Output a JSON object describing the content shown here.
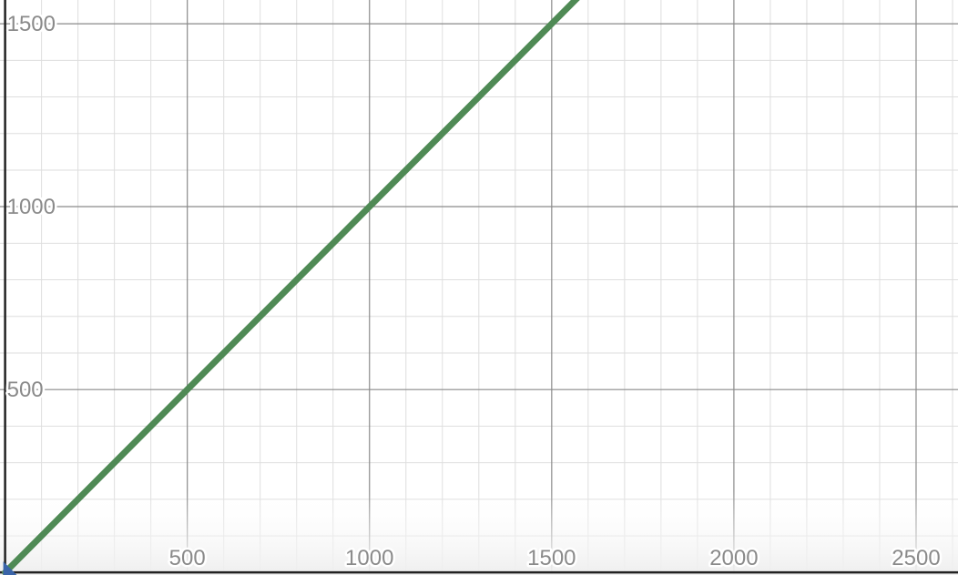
{
  "chart_data": {
    "type": "line",
    "title": "",
    "xlabel": "",
    "ylabel": "",
    "xlim": [
      -14,
      2615
    ],
    "ylim": [
      -7,
      1565
    ],
    "grid": true,
    "major_tick_step": 500,
    "minor_tick_step": 100,
    "x_ticks": [
      {
        "value": 500,
        "label": "500"
      },
      {
        "value": 1000,
        "label": "1000"
      },
      {
        "value": 1500,
        "label": "1500"
      },
      {
        "value": 2000,
        "label": "2000"
      },
      {
        "value": 2500,
        "label": "2500"
      }
    ],
    "y_ticks": [
      {
        "value": 500,
        "label": "500"
      },
      {
        "value": 1000,
        "label": "1000"
      },
      {
        "value": 1500,
        "label": "1500"
      }
    ],
    "series": [
      {
        "color": "#4f8a55",
        "x": [
          0,
          1590
        ],
        "y": [
          0,
          1590
        ]
      }
    ],
    "origin_marker_color": "#3a64a8",
    "colors": {
      "minor_grid": "#dedede",
      "major_grid": "#8a8a8a",
      "axis": "#222222",
      "tick_label": "#8a8a8a"
    }
  }
}
